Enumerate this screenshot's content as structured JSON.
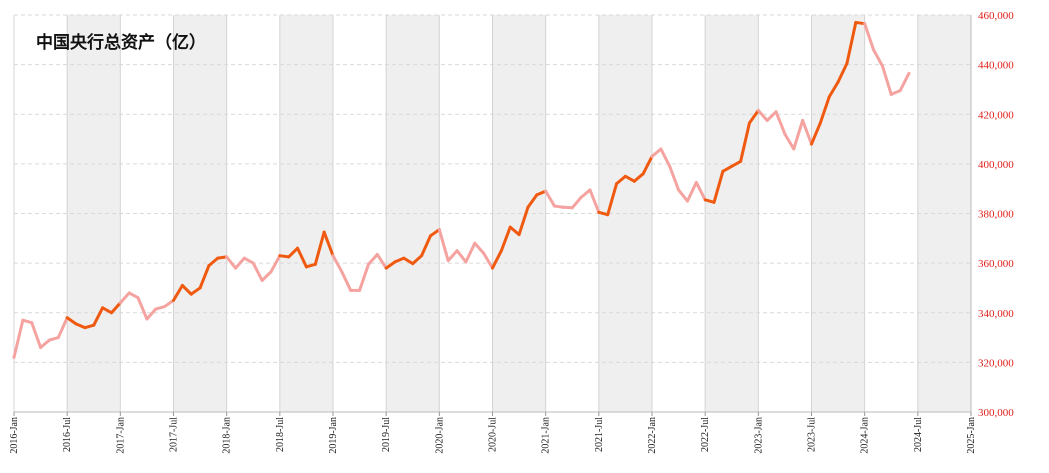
{
  "chart_data": {
    "type": "line",
    "title": "中国央行总资产（亿）",
    "xlabel": "",
    "ylabel": "",
    "x_range": [
      "2016-01",
      "2025-01"
    ],
    "ylim": [
      300000,
      460000
    ],
    "y_ticks": [
      300000,
      320000,
      340000,
      360000,
      380000,
      400000,
      420000,
      440000,
      460000
    ],
    "y_tick_labels": [
      "300,000",
      "320,000",
      "340,000",
      "360,000",
      "380,000",
      "400,000",
      "420,000",
      "440,000",
      "460,000"
    ],
    "x_tick_labels": [
      "2016-Jan",
      "2016-Jul",
      "2017-Jan",
      "2017-Jul",
      "2018-Jan",
      "2018-Jul",
      "2019-Jan",
      "2019-Jul",
      "2020-Jan",
      "2020-Jul",
      "2021-Jan",
      "2021-Jul",
      "2022-Jan",
      "2022-Jul",
      "2023-Jan",
      "2023-Jul",
      "2024-Jan",
      "2024-Jul",
      "2025-Jan"
    ],
    "y_axis_position": "right",
    "grid": true,
    "shaded_bands": "alternating half-years (Jul–Dec) shaded grey",
    "segment_colors": {
      "first_half": "#f5a3a0",
      "second_half": "#ef5a10"
    },
    "x": [
      "2016-01",
      "2016-02",
      "2016-03",
      "2016-04",
      "2016-05",
      "2016-06",
      "2016-07",
      "2016-08",
      "2016-09",
      "2016-10",
      "2016-11",
      "2016-12",
      "2017-01",
      "2017-02",
      "2017-03",
      "2017-04",
      "2017-05",
      "2017-06",
      "2017-07",
      "2017-08",
      "2017-09",
      "2017-10",
      "2017-11",
      "2017-12",
      "2018-01",
      "2018-02",
      "2018-03",
      "2018-04",
      "2018-05",
      "2018-06",
      "2018-07",
      "2018-08",
      "2018-09",
      "2018-10",
      "2018-11",
      "2018-12",
      "2019-01",
      "2019-02",
      "2019-03",
      "2019-04",
      "2019-05",
      "2019-06",
      "2019-07",
      "2019-08",
      "2019-09",
      "2019-10",
      "2019-11",
      "2019-12",
      "2020-01",
      "2020-02",
      "2020-03",
      "2020-04",
      "2020-05",
      "2020-06",
      "2020-07",
      "2020-08",
      "2020-09",
      "2020-10",
      "2020-11",
      "2020-12",
      "2021-01",
      "2021-02",
      "2021-03",
      "2021-04",
      "2021-05",
      "2021-06",
      "2021-07",
      "2021-08",
      "2021-09",
      "2021-10",
      "2021-11",
      "2021-12",
      "2022-01",
      "2022-02",
      "2022-03",
      "2022-04",
      "2022-05",
      "2022-06",
      "2022-07",
      "2022-08",
      "2022-09",
      "2022-10",
      "2022-11",
      "2022-12",
      "2023-01",
      "2023-02",
      "2023-03",
      "2023-04",
      "2023-05",
      "2023-06",
      "2023-07",
      "2023-08",
      "2023-09",
      "2023-10",
      "2023-11",
      "2023-12",
      "2024-01",
      "2024-02",
      "2024-03",
      "2024-04",
      "2024-05",
      "2024-06"
    ],
    "values": [
      322000,
      337000,
      336000,
      326000,
      329000,
      330000,
      338000,
      335500,
      334000,
      335000,
      342000,
      340000,
      344000,
      348000,
      346000,
      337500,
      341500,
      342500,
      345000,
      351000,
      347500,
      350000,
      359000,
      362000,
      362500,
      358000,
      362000,
      360000,
      353000,
      356500,
      363000,
      362500,
      366000,
      358500,
      359500,
      372500,
      363000,
      356500,
      349000,
      349000,
      359500,
      363500,
      358000,
      360500,
      362000,
      359800,
      363000,
      371000,
      373500,
      361000,
      365000,
      360500,
      368000,
      364000,
      358000,
      365000,
      374500,
      371500,
      382500,
      387500,
      389000,
      383000,
      382500,
      382300,
      386500,
      389500,
      380500,
      379500,
      392000,
      395000,
      393000,
      396000,
      403000,
      406000,
      399000,
      389500,
      385000,
      392500,
      385500,
      384500,
      397000,
      399000,
      401000,
      416500,
      421500,
      417500,
      421000,
      412000,
      406000,
      417500,
      408000,
      416500,
      427000,
      433000,
      440500,
      457000,
      456500,
      446000,
      439500,
      428000,
      429500,
      436500
    ]
  }
}
